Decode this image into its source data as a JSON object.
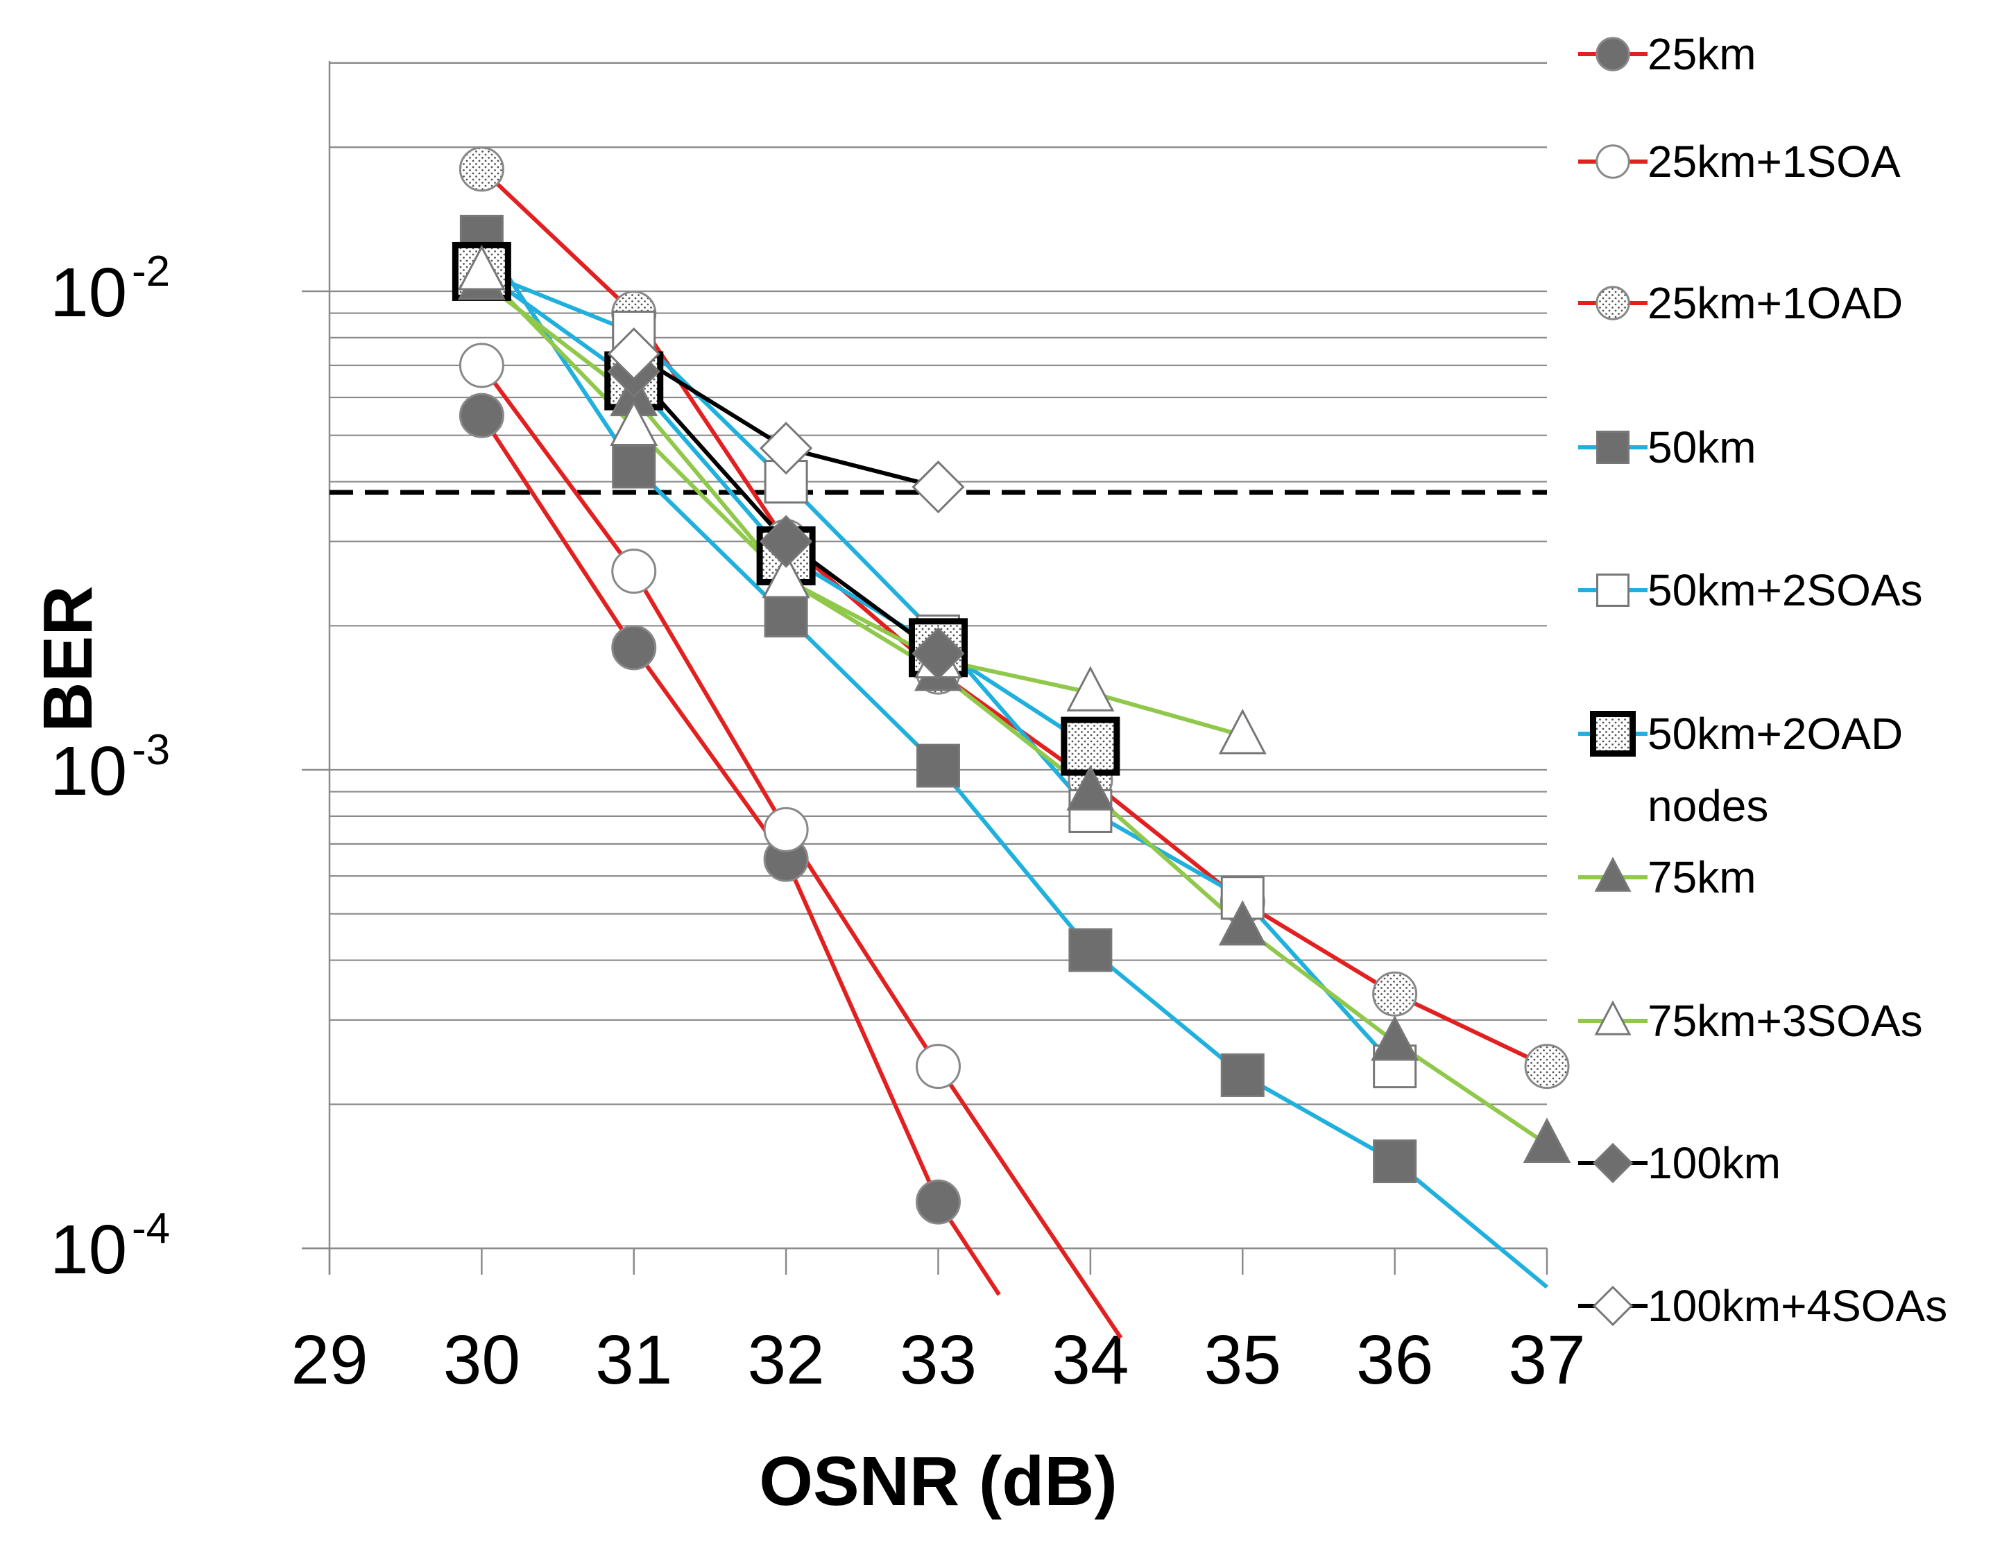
{
  "chart_data": {
    "type": "line",
    "title": "",
    "xlabel": "OSNR (dB)",
    "ylabel": "BER",
    "xlim": [
      29,
      37
    ],
    "ylim": [
      0.0001,
      0.03
    ],
    "yscale": "log",
    "x_ticks": [
      "29",
      "30",
      "31",
      "32",
      "33",
      "34",
      "35",
      "36",
      "37"
    ],
    "y_ticks": [
      {
        "value": 0.01,
        "base": "10",
        "exp": "-2"
      },
      {
        "value": 0.001,
        "base": "10",
        "exp": "-3"
      },
      {
        "value": 0.0001,
        "base": "10",
        "exp": "-4"
      }
    ],
    "threshold": {
      "value": 0.0038,
      "style": "dashed",
      "color": "#000000"
    },
    "legend_position": "right",
    "series": [
      {
        "name": "25km",
        "line_color": "#e32020",
        "marker": "circle",
        "marker_fill": "#6e6e6e",
        "points": [
          [
            30,
            0.0055
          ],
          [
            31,
            0.0018
          ],
          [
            32,
            0.00065
          ],
          [
            33,
            0.000125
          ],
          [
            33.4,
            8e-05
          ]
        ]
      },
      {
        "name": "25km+1SOA",
        "line_color": "#e32020",
        "marker": "circle",
        "marker_fill": "#ffffff",
        "points": [
          [
            30,
            0.007
          ],
          [
            31,
            0.0026
          ],
          [
            32,
            0.00075
          ],
          [
            33,
            0.00024
          ],
          [
            34.2,
            6.5e-05
          ]
        ]
      },
      {
        "name": "25km+1OAD",
        "line_color": "#e32020",
        "marker": "circle",
        "marker_fill": "dotted",
        "points": [
          [
            30,
            0.018
          ],
          [
            31,
            0.009
          ],
          [
            32,
            0.003
          ],
          [
            33,
            0.0016
          ],
          [
            34,
            0.00095
          ],
          [
            35,
            0.00053
          ],
          [
            36,
            0.00034
          ],
          [
            37,
            0.00024
          ]
        ]
      },
      {
        "name": "50km",
        "line_color": "#1fb0dd",
        "marker": "square",
        "marker_fill": "#6e6e6e",
        "points": [
          [
            30,
            0.013
          ],
          [
            31,
            0.0043
          ],
          [
            32,
            0.0021
          ],
          [
            33,
            0.00102
          ],
          [
            34,
            0.00042
          ],
          [
            35,
            0.00023
          ],
          [
            36,
            0.000152
          ],
          [
            37,
            8.3e-05
          ]
        ]
      },
      {
        "name": "50km+2SOAs",
        "line_color": "#1fb0dd",
        "marker": "square",
        "marker_fill": "#ffffff",
        "points": [
          [
            30,
            0.011
          ],
          [
            31,
            0.0082
          ],
          [
            32,
            0.004
          ],
          [
            33,
            0.0019
          ],
          [
            34,
            0.00082
          ],
          [
            35,
            0.00054
          ],
          [
            36,
            0.00024
          ]
        ]
      },
      {
        "name": "50km+2OAD nodes",
        "line_color": "#1fb0dd",
        "marker": "square-bold",
        "marker_fill": "dotted",
        "points": [
          [
            30,
            0.011
          ],
          [
            31,
            0.0065
          ],
          [
            32,
            0.0028
          ],
          [
            33,
            0.0018
          ],
          [
            34,
            0.00112
          ]
        ]
      },
      {
        "name": "75km",
        "line_color": "#8fc84a",
        "marker": "triangle",
        "marker_fill": "#6e6e6e",
        "points": [
          [
            30,
            0.0105
          ],
          [
            31,
            0.006
          ],
          [
            32,
            0.0025
          ],
          [
            33,
            0.0016
          ],
          [
            34,
            0.0009
          ],
          [
            35,
            0.00047
          ],
          [
            36,
            0.00027
          ],
          [
            37,
            0.000165
          ]
        ]
      },
      {
        "name": "75km+3SOAs",
        "line_color": "#8fc84a",
        "marker": "triangle",
        "marker_fill": "#ffffff",
        "points": [
          [
            30,
            0.011
          ],
          [
            31,
            0.0052
          ],
          [
            32,
            0.0025
          ],
          [
            33,
            0.0017
          ],
          [
            34,
            0.00145
          ],
          [
            35,
            0.00118
          ]
        ]
      },
      {
        "name": "100km",
        "line_color": "#000000",
        "marker": "diamond",
        "marker_fill": "#6e6e6e",
        "points": [
          [
            31,
            0.0068
          ],
          [
            32,
            0.003
          ],
          [
            33,
            0.00175
          ]
        ]
      },
      {
        "name": "100km+4SOAs",
        "line_color": "#000000",
        "marker": "diamond",
        "marker_fill": "#ffffff",
        "points": [
          [
            31,
            0.0074
          ],
          [
            32,
            0.0047
          ],
          [
            33,
            0.0039
          ]
        ]
      }
    ]
  }
}
